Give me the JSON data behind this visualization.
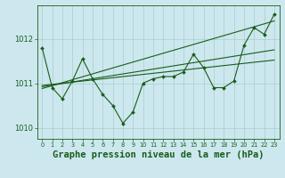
{
  "title": "Graphe pression niveau de la mer (hPa)",
  "background_color": "#cce8ee",
  "grid_color": "#aacccc",
  "line_color": "#1a5c1a",
  "xlim": [
    -0.5,
    23.5
  ],
  "ylim": [
    1009.75,
    1012.75
  ],
  "yticks": [
    1010,
    1011,
    1012
  ],
  "xticks": [
    0,
    1,
    2,
    3,
    4,
    5,
    6,
    7,
    8,
    9,
    10,
    11,
    12,
    13,
    14,
    15,
    16,
    17,
    18,
    19,
    20,
    21,
    22,
    23
  ],
  "series_main": [
    1011.8,
    1010.9,
    1010.65,
    1011.05,
    1011.55,
    1011.1,
    1010.75,
    1010.5,
    1010.1,
    1010.35,
    1011.0,
    1011.1,
    1011.15,
    1011.15,
    1011.25,
    1011.65,
    1011.35,
    1010.9,
    1010.9,
    1011.05,
    1011.85,
    1012.25,
    1012.1,
    1012.55
  ],
  "trend1_x": [
    0,
    23
  ],
  "trend1_y": [
    1010.88,
    1012.4
  ],
  "trend2_x": [
    0,
    23
  ],
  "trend2_y": [
    1010.92,
    1011.75
  ],
  "trend3_x": [
    0,
    23
  ],
  "trend3_y": [
    1010.95,
    1011.52
  ],
  "marker_size": 2.0,
  "linewidth": 0.8,
  "title_fontsize": 7.5,
  "tick_fontsize": 5.5
}
